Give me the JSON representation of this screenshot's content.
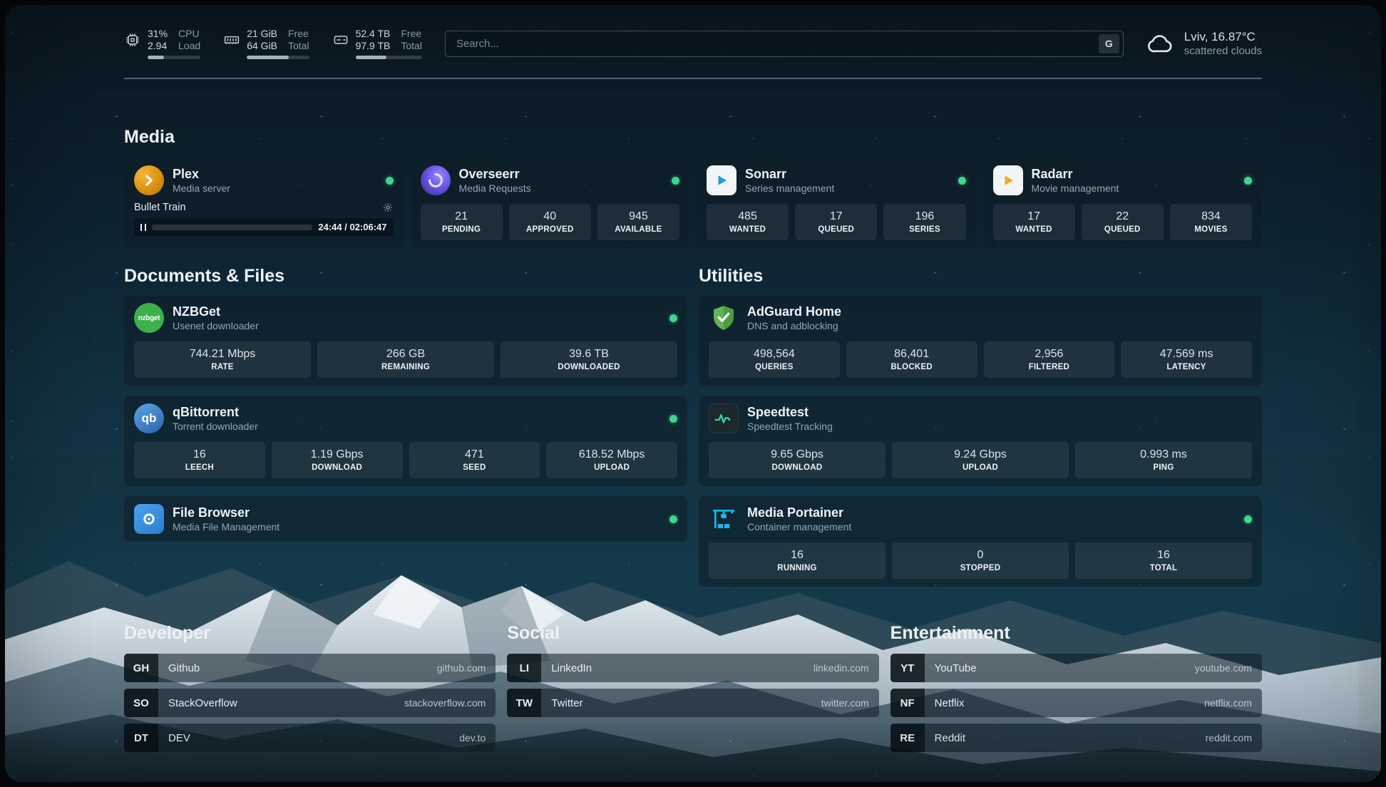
{
  "topbar": {
    "resources": [
      {
        "icon": "cpu-icon",
        "value_top": "31%",
        "value_bottom": "2.94",
        "label_top": "CPU",
        "label_bottom": "Load",
        "progress_pct": 31
      },
      {
        "icon": "memory-icon",
        "value_top": "21 GiB",
        "value_bottom": "64 GiB",
        "label_top": "Free",
        "label_bottom": "Total",
        "progress_pct": 67
      },
      {
        "icon": "disk-icon",
        "value_top": "52.4 TB",
        "value_bottom": "97.9 TB",
        "label_top": "Free",
        "label_bottom": "Total",
        "progress_pct": 46
      }
    ],
    "search": {
      "placeholder": "Search...",
      "provider_letter": "G"
    },
    "weather": {
      "location": "Lviv, 16.87°C",
      "condition": "scattered clouds"
    }
  },
  "sections": {
    "media": {
      "title": "Media"
    },
    "documents": {
      "title": "Documents & Files"
    },
    "utilities": {
      "title": "Utilities"
    }
  },
  "services": {
    "plex": {
      "name": "Plex",
      "desc": "Media server",
      "now_playing": "Bullet Train",
      "time": "24:44 / 02:06:47",
      "progress_pct": 19
    },
    "overseerr": {
      "name": "Overseerr",
      "desc": "Media Requests",
      "stats": [
        {
          "value": "21",
          "label": "PENDING"
        },
        {
          "value": "40",
          "label": "APPROVED"
        },
        {
          "value": "945",
          "label": "AVAILABLE"
        }
      ]
    },
    "sonarr": {
      "name": "Sonarr",
      "desc": "Series management",
      "stats": [
        {
          "value": "485",
          "label": "WANTED"
        },
        {
          "value": "17",
          "label": "QUEUED"
        },
        {
          "value": "196",
          "label": "SERIES"
        }
      ]
    },
    "radarr": {
      "name": "Radarr",
      "desc": "Movie management",
      "stats": [
        {
          "value": "17",
          "label": "WANTED"
        },
        {
          "value": "22",
          "label": "QUEUED"
        },
        {
          "value": "834",
          "label": "MOVIES"
        }
      ]
    },
    "nzbget": {
      "name": "NZBGet",
      "desc": "Usenet downloader",
      "icon_text": "nzbget",
      "stats": [
        {
          "value": "744.21 Mbps",
          "label": "RATE"
        },
        {
          "value": "266 GB",
          "label": "REMAINING"
        },
        {
          "value": "39.6 TB",
          "label": "DOWNLOADED"
        }
      ]
    },
    "qbittorrent": {
      "name": "qBittorrent",
      "desc": "Torrent downloader",
      "icon_text": "qb",
      "stats": [
        {
          "value": "16",
          "label": "LEECH"
        },
        {
          "value": "1.19 Gbps",
          "label": "DOWNLOAD"
        },
        {
          "value": "471",
          "label": "SEED"
        },
        {
          "value": "618.52 Mbps",
          "label": "UPLOAD"
        }
      ]
    },
    "filebrowser": {
      "name": "File Browser",
      "desc": "Media File Management"
    },
    "adguard": {
      "name": "AdGuard Home",
      "desc": "DNS and adblocking",
      "stats": [
        {
          "value": "498,564",
          "label": "QUERIES"
        },
        {
          "value": "86,401",
          "label": "BLOCKED"
        },
        {
          "value": "2,956",
          "label": "FILTERED"
        },
        {
          "value": "47.569 ms",
          "label": "LATENCY"
        }
      ]
    },
    "speedtest": {
      "name": "Speedtest",
      "desc": "Speedtest Tracking",
      "stats": [
        {
          "value": "9.65 Gbps",
          "label": "DOWNLOAD"
        },
        {
          "value": "9.24 Gbps",
          "label": "UPLOAD"
        },
        {
          "value": "0.993 ms",
          "label": "PING"
        }
      ]
    },
    "portainer": {
      "name": "Media Portainer",
      "desc": "Container management",
      "stats": [
        {
          "value": "16",
          "label": "RUNNING"
        },
        {
          "value": "0",
          "label": "STOPPED"
        },
        {
          "value": "16",
          "label": "TOTAL"
        }
      ]
    }
  },
  "bookmarks": {
    "groups": [
      {
        "title": "Developer",
        "items": [
          {
            "abbr": "GH",
            "name": "Github",
            "url": "github.com"
          },
          {
            "abbr": "SO",
            "name": "StackOverflow",
            "url": "stackoverflow.com"
          },
          {
            "abbr": "DT",
            "name": "DEV",
            "url": "dev.to"
          }
        ]
      },
      {
        "title": "Social",
        "items": [
          {
            "abbr": "LI",
            "name": "LinkedIn",
            "url": "linkedin.com"
          },
          {
            "abbr": "TW",
            "name": "Twitter",
            "url": "twitter.com"
          }
        ]
      },
      {
        "title": "Entertainment",
        "items": [
          {
            "abbr": "YT",
            "name": "YouTube",
            "url": "youtube.com"
          },
          {
            "abbr": "NF",
            "name": "Netflix",
            "url": "netflix.com"
          },
          {
            "abbr": "RE",
            "name": "Reddit",
            "url": "reddit.com"
          }
        ]
      }
    ]
  },
  "colors": {
    "online": "#3fd68f",
    "plex": "#e5a00d",
    "sonarr": "#1e9fd8",
    "radarr": "#f2a81d",
    "adguard": "#63b456",
    "adguard_dark": "#4c9c41",
    "speedtest_line": "#2fd3a0",
    "portainer": "#1ab5ee"
  }
}
